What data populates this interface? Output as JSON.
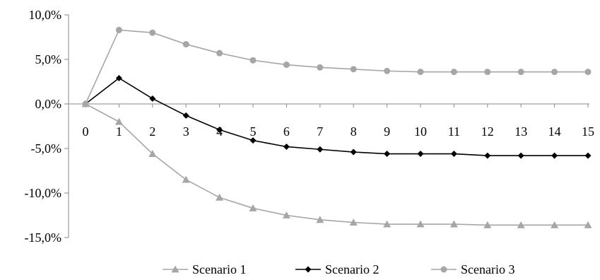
{
  "chart_data": {
    "type": "line",
    "x": [
      0,
      1,
      2,
      3,
      4,
      5,
      6,
      7,
      8,
      9,
      10,
      11,
      12,
      13,
      14,
      15
    ],
    "y_ticks": [
      "10,0%",
      "5,0%",
      "0,0%",
      "-5,0%",
      "-10,0%",
      "-15,0%"
    ],
    "y_tick_values": [
      10,
      5,
      0,
      -5,
      -10,
      -15
    ],
    "x_tick_labels": [
      "0",
      "1",
      "2",
      "3",
      "4",
      "5",
      "6",
      "7",
      "8",
      "9",
      "10",
      "11",
      "12",
      "13",
      "14",
      "15"
    ],
    "ylim": [
      -15,
      10
    ],
    "y_unit": "%",
    "grid": false,
    "legend_position": "bottom",
    "series": [
      {
        "name": "Scenario 1",
        "color": "#a6a6a6",
        "marker": "triangle",
        "values": [
          0.0,
          -2.0,
          -5.6,
          -8.5,
          -10.5,
          -11.7,
          -12.5,
          -13.0,
          -13.3,
          -13.5,
          -13.5,
          -13.5,
          -13.6,
          -13.6,
          -13.6,
          -13.6
        ]
      },
      {
        "name": "Scenario 2",
        "color": "#000000",
        "marker": "diamond",
        "values": [
          0.0,
          2.9,
          0.6,
          -1.3,
          -2.9,
          -4.1,
          -4.8,
          -5.1,
          -5.4,
          -5.6,
          -5.6,
          -5.6,
          -5.8,
          -5.8,
          -5.8,
          -5.8
        ]
      },
      {
        "name": "Scenario 3",
        "color": "#a6a6a6",
        "marker": "circle",
        "values": [
          0.0,
          8.3,
          8.0,
          6.7,
          5.7,
          4.9,
          4.4,
          4.1,
          3.9,
          3.7,
          3.6,
          3.6,
          3.6,
          3.6,
          3.6,
          3.6
        ]
      }
    ]
  }
}
